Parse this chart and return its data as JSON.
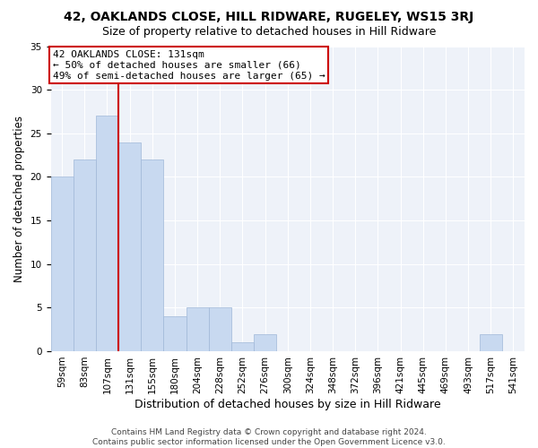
{
  "title": "42, OAKLANDS CLOSE, HILL RIDWARE, RUGELEY, WS15 3RJ",
  "subtitle": "Size of property relative to detached houses in Hill Ridware",
  "xlabel": "Distribution of detached houses by size in Hill Ridware",
  "ylabel": "Number of detached properties",
  "bin_labels": [
    "59sqm",
    "83sqm",
    "107sqm",
    "131sqm",
    "155sqm",
    "180sqm",
    "204sqm",
    "228sqm",
    "252sqm",
    "276sqm",
    "300sqm",
    "324sqm",
    "348sqm",
    "372sqm",
    "396sqm",
    "421sqm",
    "445sqm",
    "469sqm",
    "493sqm",
    "517sqm",
    "541sqm"
  ],
  "bar_values": [
    20,
    22,
    27,
    24,
    22,
    4,
    5,
    5,
    1,
    2,
    0,
    0,
    0,
    0,
    0,
    0,
    0,
    0,
    0,
    2,
    0
  ],
  "bar_color": "#c8d9f0",
  "bar_edgecolor": "#a0b8d8",
  "property_line_bin_index": 3,
  "annotation_text": "42 OAKLANDS CLOSE: 131sqm\n← 50% of detached houses are smaller (66)\n49% of semi-detached houses are larger (65) →",
  "annotation_box_color": "#ffffff",
  "annotation_box_edgecolor": "#cc0000",
  "vline_color": "#cc0000",
  "ylim": [
    0,
    35
  ],
  "yticks": [
    0,
    5,
    10,
    15,
    20,
    25,
    30,
    35
  ],
  "footer_text": "Contains HM Land Registry data © Crown copyright and database right 2024.\nContains public sector information licensed under the Open Government Licence v3.0.",
  "background_color": "#eef2f9",
  "title_fontsize": 10,
  "subtitle_fontsize": 9,
  "xlabel_fontsize": 9,
  "ylabel_fontsize": 8.5,
  "tick_fontsize": 7.5,
  "annotation_fontsize": 8,
  "footer_fontsize": 6.5
}
